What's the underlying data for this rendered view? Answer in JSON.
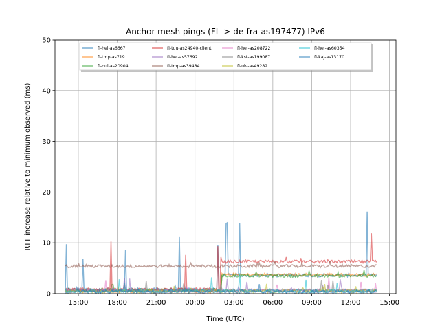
{
  "chart_data": {
    "type": "line",
    "title": "Anchor mesh pings (FI -> de-fra-as197477) IPv6",
    "xlabel": "Time (UTC)",
    "ylabel": "RTT increase relative to minimum observed (ms)",
    "x_ticks": [
      "15:00",
      "18:00",
      "21:00",
      "00:00",
      "03:00",
      "06:00",
      "09:00",
      "12:00",
      "15:00"
    ],
    "x_tick_hours": [
      15,
      18,
      21,
      24,
      27,
      30,
      33,
      36,
      39
    ],
    "xlim_hours": [
      13.2,
      39.5
    ],
    "ylim": [
      0,
      50
    ],
    "y_ticks": [
      0,
      10,
      20,
      30,
      40,
      50
    ],
    "grid": true,
    "legend_placement": "top-center",
    "series": [
      {
        "name": "fi-hel-as6667",
        "color": "#1f77b4",
        "baseline": 0.8,
        "start_hour": 14.0,
        "end_hour": 38.0,
        "spike_max": 13.8
      },
      {
        "name": "fi-tmp-as719",
        "color": "#ff7f0e",
        "baseline": 0.5,
        "start_hour": 14.0,
        "end_hour": 38.0,
        "spike_max": 2.5
      },
      {
        "name": "fi-oul-as20904",
        "color": "#2ca02c",
        "baseline": 0.7,
        "start_hour": 14.0,
        "end_hour": 38.0,
        "spike_max": 2.0
      },
      {
        "name": "fi-tuu-as24940-client",
        "color": "#d62728",
        "baseline": 0.8,
        "start_hour": 14.0,
        "end_hour": 38.0,
        "spike_max": 11.5
      },
      {
        "name": "fi-hel-as57692",
        "color": "#9467bd",
        "baseline": 0.6,
        "start_hour": 14.0,
        "end_hour": 38.0,
        "spike_max": 3.5
      },
      {
        "name": "fi-tmp-as39484",
        "color": "#8c564b",
        "baseline": 5.4,
        "start_hour": 14.0,
        "end_hour": 38.0,
        "spike_max": 6.3
      },
      {
        "name": "fi-hel-as208722",
        "color": "#e377c2",
        "baseline": 0.6,
        "start_hour": 14.0,
        "end_hour": 38.0,
        "spike_max": 3.0
      },
      {
        "name": "fi-kst-as199087",
        "color": "#7f7f7f",
        "baseline": 0.6,
        "start_hour": 14.0,
        "end_hour": 38.0,
        "spike_max": 3.0
      },
      {
        "name": "fi-ulv-as49282",
        "color": "#bcbd22",
        "baseline": 0.5,
        "start_hour": 14.0,
        "end_hour": 38.0,
        "spike_max": 2.0
      },
      {
        "name": "fi-hel-as60354",
        "color": "#17becf",
        "baseline": 0.5,
        "start_hour": 14.0,
        "end_hour": 38.0,
        "spike_max": 4.0
      },
      {
        "name": "fi-kaj-as13170",
        "color": "#1f77b4",
        "baseline": 0.4,
        "start_hour": 14.0,
        "end_hour": 38.0,
        "spike_max": 2.0
      }
    ]
  }
}
